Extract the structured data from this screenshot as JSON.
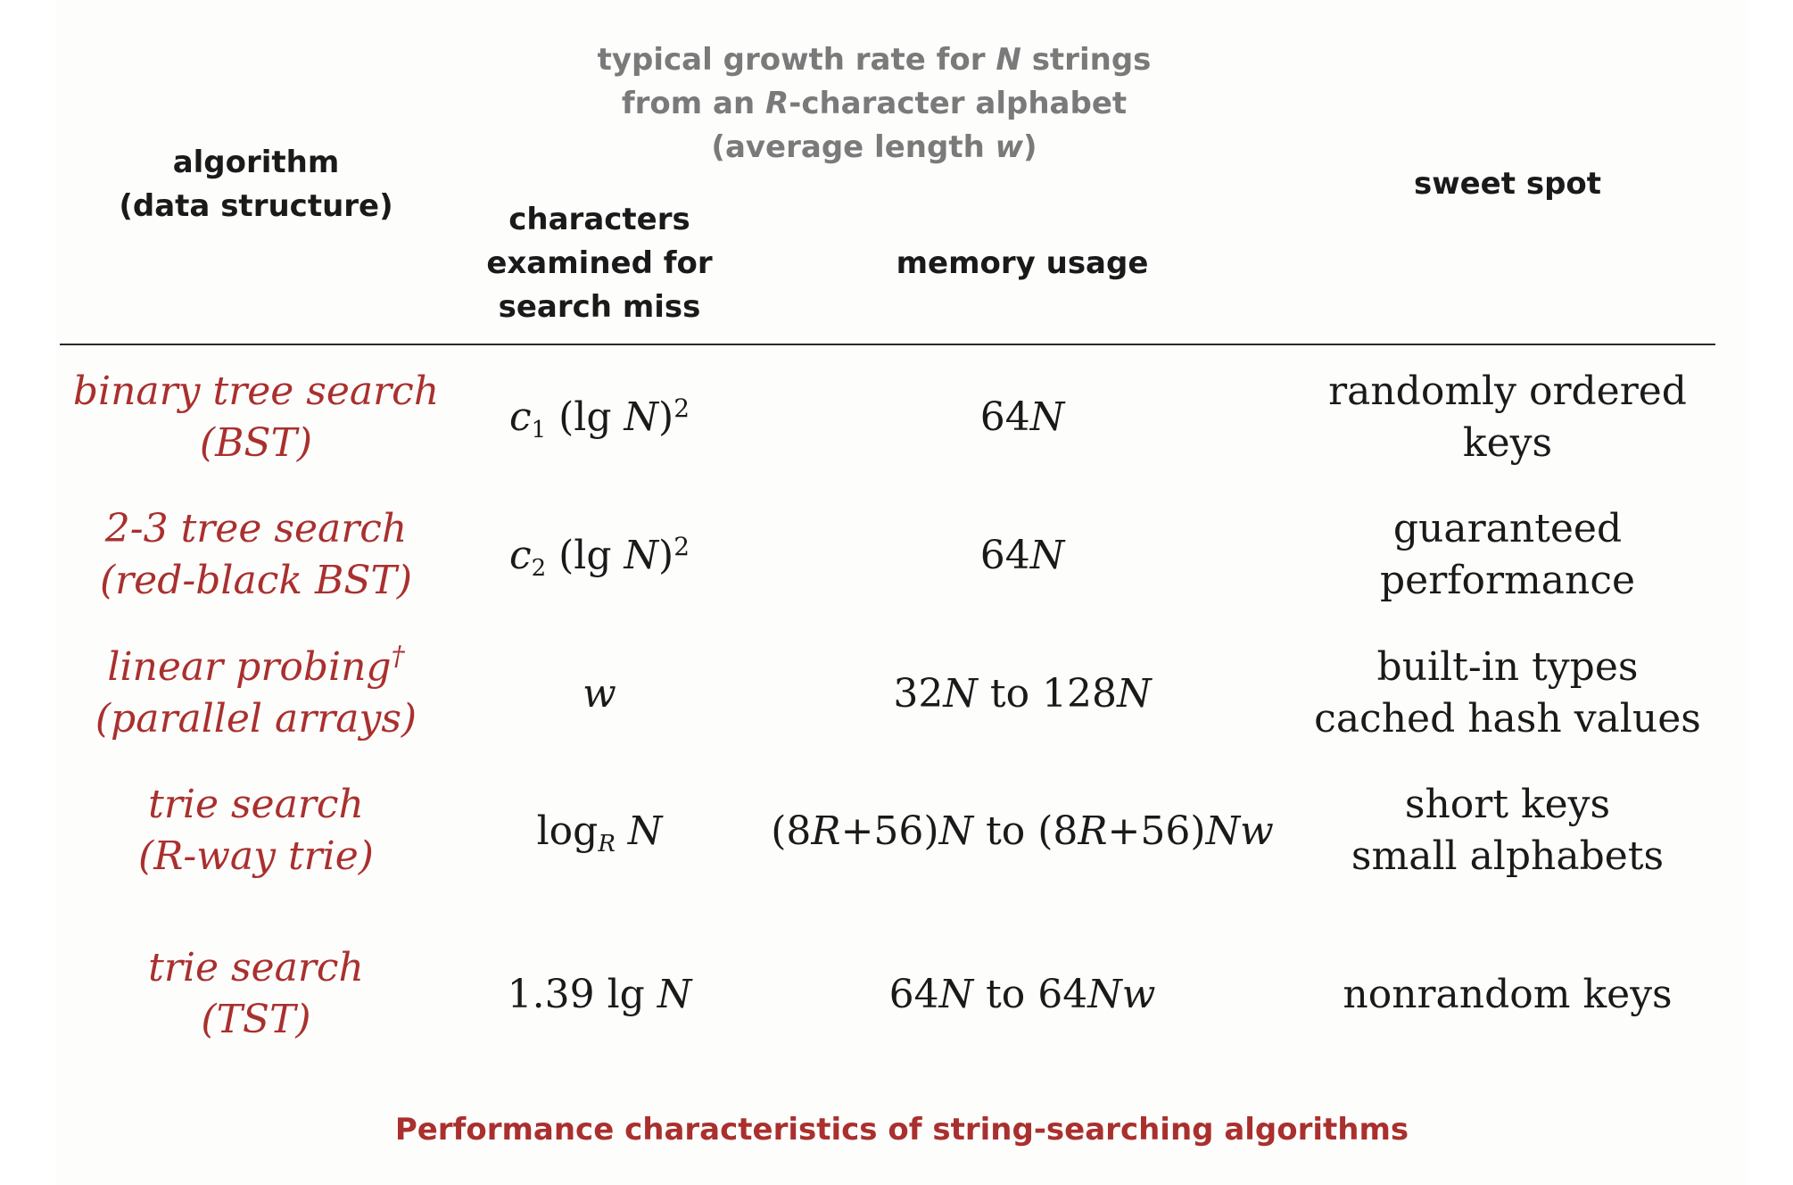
{
  "colors": {
    "accent_red": "#a9302e",
    "header_gray": "#7a7a7a",
    "text": "#1a1a1a"
  },
  "header": {
    "algorithm": [
      "algorithm",
      "(data structure)"
    ],
    "growth_rate": {
      "line1": {
        "a": "typical growth rate for ",
        "b": "N",
        "c": " strings"
      },
      "line2": {
        "a": "from an ",
        "b": "R",
        "c": "-character alphabet"
      },
      "line3": {
        "a": "(average length ",
        "b": "w",
        "c": ")"
      }
    },
    "characters": [
      "characters",
      "examined for",
      "search miss"
    ],
    "memory": "memory usage",
    "sweet_spot": "sweet spot"
  },
  "rows": [
    {
      "algorithm": [
        "binary tree search",
        "(BST)"
      ],
      "chars": {
        "c": "c",
        "sub": "1",
        "rest": " (lg ",
        "N": "N",
        "close": ")",
        "sup": "2"
      },
      "memory": {
        "num": "64",
        "var": "N"
      },
      "sweet_spot": [
        "randomly ordered",
        "keys"
      ]
    },
    {
      "algorithm": [
        "2-3 tree search",
        "(red-black BST)"
      ],
      "chars": {
        "c": "c",
        "sub": "2",
        "rest": " (lg ",
        "N": "N",
        "close": ")",
        "sup": "2"
      },
      "memory": {
        "num": "64",
        "var": "N"
      },
      "sweet_spot": [
        "guaranteed",
        "performance"
      ]
    },
    {
      "algorithm": {
        "line1": "linear probing",
        "dagger": "†",
        "line2": "(parallel arrays)"
      },
      "chars": {
        "w": "w"
      },
      "memory": {
        "a": "32",
        "b": "N",
        "c": " to 128",
        "d": "N"
      },
      "sweet_spot": [
        "built-in types",
        "cached hash values"
      ]
    },
    {
      "algorithm": [
        "trie search",
        "(R-way trie)"
      ],
      "chars": {
        "log": "log",
        "sub": "R",
        "N": "N"
      },
      "memory": {
        "p1": "(8",
        "R1": "R",
        "p2": "+56)",
        "N1": "N",
        "p3": " to (8",
        "R2": "R",
        "p4": "+56)",
        "N2": "Nw"
      },
      "sweet_spot": [
        "short keys",
        "small alphabets"
      ]
    },
    {
      "algorithm": [
        "trie search",
        "(TST)"
      ],
      "chars": {
        "text": "1.39 lg ",
        "N": "N"
      },
      "memory": {
        "a": "64",
        "b": "N",
        "c": " to 64",
        "d": "Nw"
      },
      "sweet_spot": [
        "nonrandom keys"
      ]
    }
  ],
  "caption": "Performance characteristics of string-searching algorithms"
}
